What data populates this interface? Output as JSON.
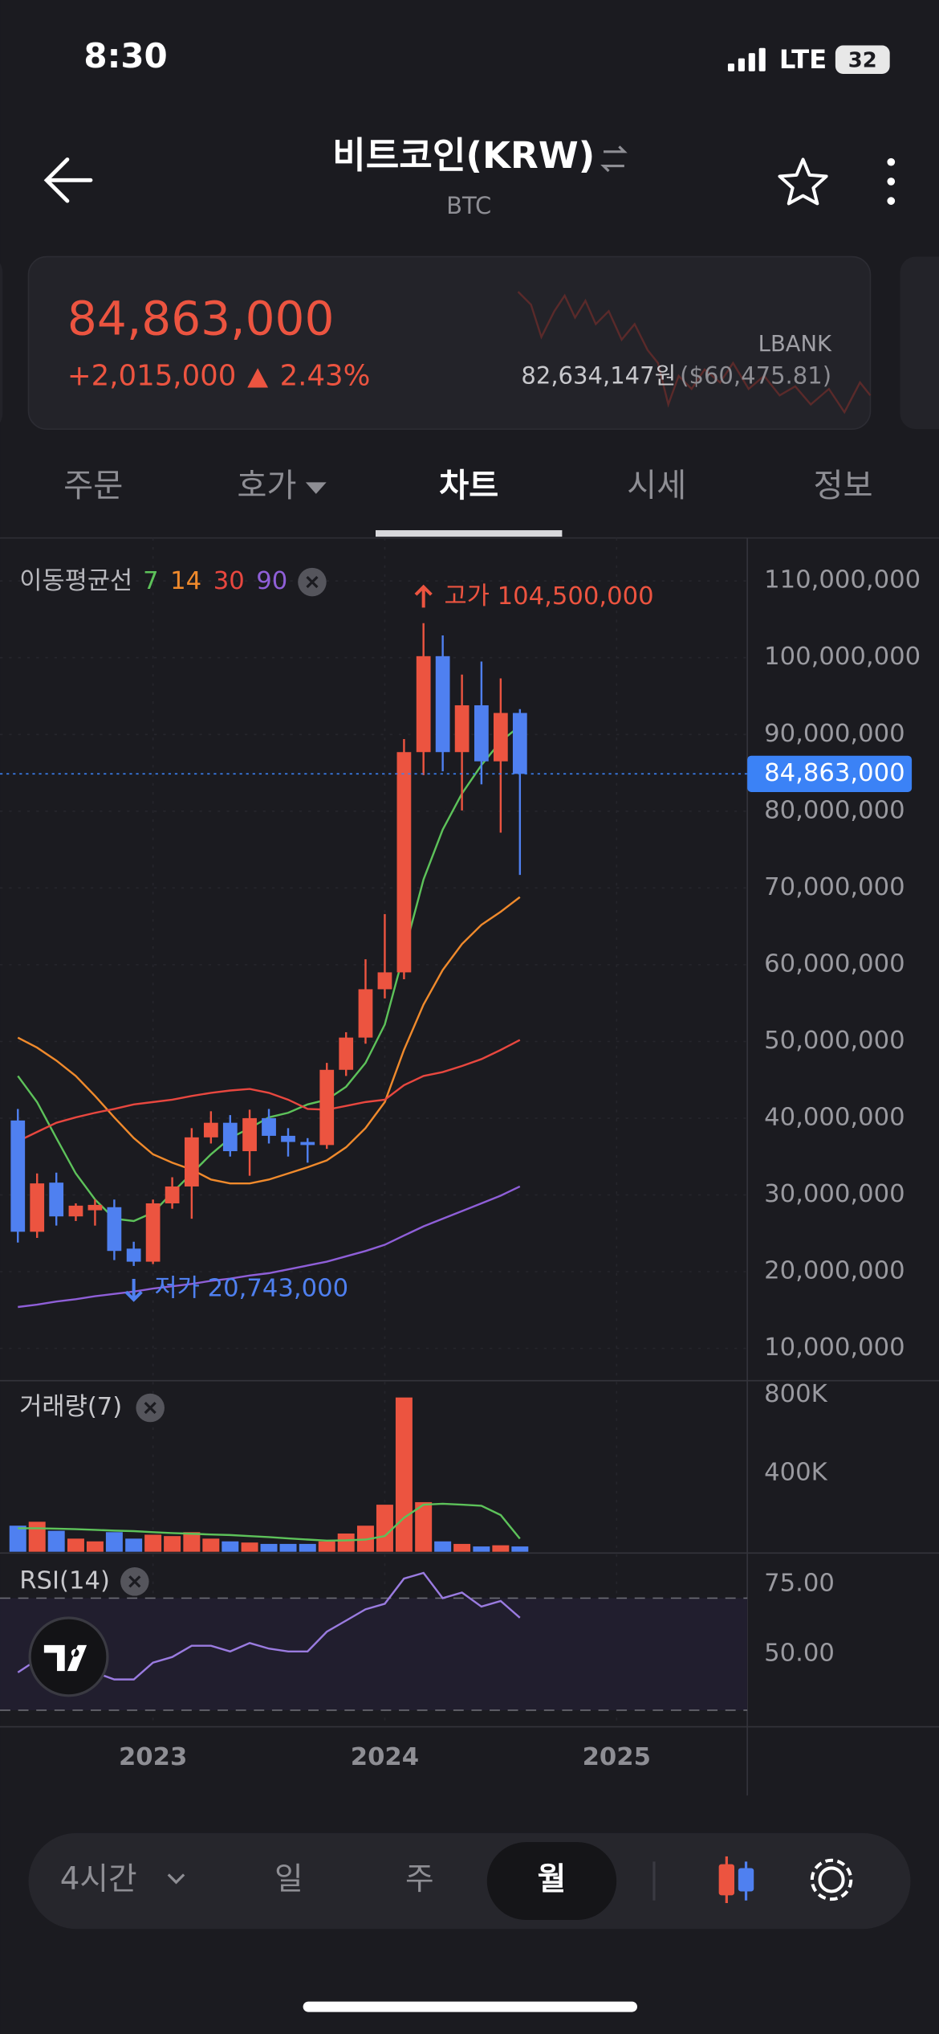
{
  "status_bar": {
    "time": "8:30",
    "network": "LTE",
    "battery": "32"
  },
  "header": {
    "title": "비트코인(KRW)",
    "subtitle": "BTC"
  },
  "price_card": {
    "price": "84,863,000",
    "change": "+2,015,000",
    "change_pct": "2.43%",
    "exchange": "LBANK",
    "exchange_price": "82,634,147원",
    "exchange_price_usd": "($60,475.81)"
  },
  "tabs": [
    "주문",
    "호가",
    "차트",
    "시세",
    "정보"
  ],
  "active_tab": "차트",
  "chart_data": {
    "type": "candlestick",
    "ma_label": "이동평균선",
    "up_color": "#ec5440",
    "down_color": "#4f80f0",
    "x": [
      2022.417,
      2022.5,
      2022.583,
      2022.667,
      2022.75,
      2022.833,
      2022.917,
      2023,
      2023.083,
      2023.167,
      2023.25,
      2023.333,
      2023.417,
      2023.5,
      2023.583,
      2023.667,
      2023.75,
      2023.833,
      2023.917,
      2024,
      2024.083,
      2024.167,
      2024.25,
      2024.333,
      2024.417,
      2024.5,
      2024.583
    ],
    "candles": {
      "open": [
        39700000,
        25200000,
        31600000,
        27200000,
        28000000,
        28400000,
        23000000,
        21300000,
        28900000,
        31100000,
        37500000,
        39400000,
        35700000,
        40000000,
        37700000,
        36900000,
        36500000,
        46300000,
        50500000,
        56800000,
        59000000,
        87700000,
        100200000,
        87700000,
        93800000,
        86500000,
        92800000
      ],
      "high": [
        41200000,
        32800000,
        32900000,
        28900000,
        29400000,
        29400000,
        23900000,
        29400000,
        32300000,
        38700000,
        40900000,
        40400000,
        41100000,
        41200000,
        38700000,
        37400000,
        47200000,
        51200000,
        60700000,
        66600000,
        89400000,
        104500000,
        102900000,
        97800000,
        99500000,
        97300000,
        93300000
      ],
      "low": [
        23800000,
        24400000,
        26000000,
        26600000,
        26000000,
        21500000,
        20743000,
        21000000,
        28200000,
        26900000,
        36700000,
        35000000,
        32500000,
        36700000,
        35000000,
        34200000,
        36000000,
        45500000,
        49700000,
        55600000,
        58100000,
        84700000,
        85200000,
        80100000,
        83500000,
        77200000,
        71700000
      ],
      "close": [
        25200000,
        31500000,
        27200000,
        28600000,
        28700000,
        22700000,
        21300000,
        28900000,
        31100000,
        37500000,
        39400000,
        35700000,
        40000000,
        37700000,
        36900000,
        36500000,
        46300000,
        50500000,
        56800000,
        59000000,
        87700000,
        100200000,
        87700000,
        93800000,
        86500000,
        92800000,
        84863000
      ]
    },
    "ma_series": [
      {
        "name": "7",
        "color": "#5dc25a",
        "values": [
          45500000,
          42100000,
          37400000,
          32800000,
          29400000,
          26900000,
          26600000,
          27700000,
          30300000,
          32800000,
          35300000,
          37400000,
          38700000,
          40100000,
          40700000,
          41800000,
          42400000,
          44100000,
          47200000,
          52200000,
          61500000,
          71100000,
          77600000,
          82300000,
          86000000,
          89100000,
          91100000
        ]
      },
      {
        "name": "14",
        "color": "#f08a2c",
        "values": [
          50500000,
          49200000,
          47500000,
          45500000,
          42900000,
          40100000,
          37400000,
          35300000,
          34200000,
          33300000,
          32000000,
          31500000,
          31500000,
          32000000,
          32800000,
          33600000,
          34500000,
          36200000,
          38700000,
          42100000,
          48900000,
          54800000,
          59300000,
          62700000,
          65200000,
          66900000,
          68800000
        ]
      },
      {
        "name": "30",
        "color": "#e8473f",
        "values": [
          37000000,
          38200000,
          39400000,
          40100000,
          40700000,
          41200000,
          41800000,
          42100000,
          42400000,
          42900000,
          43300000,
          43600000,
          43800000,
          43300000,
          42400000,
          41200000,
          41100000,
          41600000,
          42100000,
          42400000,
          44300000,
          45500000,
          46000000,
          46800000,
          47700000,
          48900000,
          50200000
        ]
      },
      {
        "name": "90",
        "color": "#8f5fd8",
        "values": [
          15400000,
          15700000,
          16100000,
          16400000,
          16800000,
          17100000,
          17400000,
          17800000,
          18100000,
          18400000,
          18800000,
          19100000,
          19500000,
          19800000,
          20300000,
          20800000,
          21300000,
          22000000,
          22700000,
          23500000,
          24700000,
          25900000,
          26900000,
          27900000,
          28900000,
          29900000,
          31100000
        ]
      }
    ],
    "xlim": [
      2022.34,
      2025.564
    ],
    "xticks": [
      2023,
      2024,
      2025
    ],
    "ylim": [
      5800000,
      115600000
    ],
    "yticks": [
      {
        "value": 10000000,
        "label": "10,000,000"
      },
      {
        "value": 20000000,
        "label": "20,000,000"
      },
      {
        "value": 30000000,
        "label": "30,000,000"
      },
      {
        "value": 40000000,
        "label": "40,000,000"
      },
      {
        "value": 50000000,
        "label": "50,000,000"
      },
      {
        "value": 60000000,
        "label": "60,000,000"
      },
      {
        "value": 70000000,
        "label": "70,000,000"
      },
      {
        "value": 80000000,
        "label": "80,000,000"
      },
      {
        "value": 90000000,
        "label": "90,000,000"
      },
      {
        "value": 100000000,
        "label": "100,000,000"
      },
      {
        "value": 110000000,
        "label": "110,000,000"
      }
    ],
    "grid": true,
    "current_price": {
      "value": 84863000,
      "label": "84,863,000",
      "color": "#3b82f6"
    },
    "annotations": [
      {
        "text": "고가 104,500,000",
        "color": "#ec5440"
      },
      {
        "text": "저가 20,743,000",
        "color": "#4f80f0"
      }
    ],
    "volume": {
      "title": "거래량(7)",
      "values": [
        133000,
        153000,
        107000,
        67000,
        53000,
        100000,
        67000,
        87000,
        80000,
        100000,
        67000,
        53000,
        47000,
        40000,
        40000,
        40000,
        53000,
        93000,
        133000,
        240000,
        787000,
        253000,
        53000,
        40000,
        27000,
        33000,
        27000
      ],
      "ma_color": "#5dc25a",
      "ma_values": [
        120000,
        120000,
        118000,
        115000,
        112000,
        108000,
        105000,
        100000,
        95000,
        92000,
        88000,
        85000,
        80000,
        75000,
        68000,
        62000,
        57000,
        58000,
        62000,
        80000,
        173000,
        240000,
        245000,
        240000,
        235000,
        187000,
        67000
      ],
      "ylim": [
        0,
        873000
      ],
      "yticks": [
        {
          "value": 400000,
          "label": "400K"
        },
        {
          "value": 800000,
          "label": "800K"
        }
      ]
    },
    "rsi": {
      "title": "RSI(14)",
      "color": "#9a7be0",
      "values": [
        43.5,
        48,
        50,
        46,
        43.5,
        41,
        41,
        47,
        49,
        53,
        53,
        51,
        54,
        52,
        51,
        51,
        58,
        62,
        66,
        68,
        77,
        79,
        70,
        72,
        67,
        69,
        63
      ],
      "ylim": [
        24.1,
        86.1
      ],
      "yticks": [
        {
          "value": 50,
          "label": "50.00"
        },
        {
          "value": 75,
          "label": "75.00"
        }
      ],
      "bands": [
        30,
        70
      ]
    }
  },
  "toolbar": {
    "intervals": [
      "4시간",
      "일",
      "주",
      "월"
    ],
    "active": "월"
  }
}
